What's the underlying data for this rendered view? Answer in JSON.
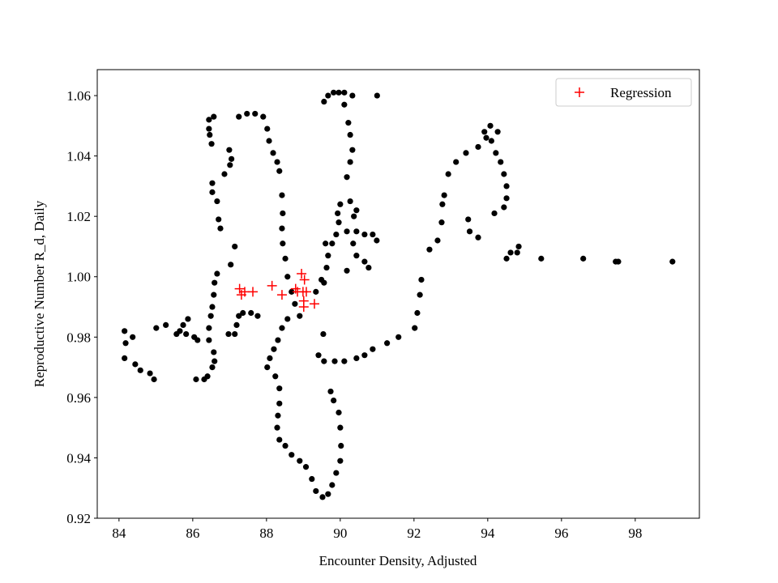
{
  "chart_data": {
    "type": "scatter",
    "xlabel": "Encounter Density, Adjusted",
    "ylabel": "Reproductive Number R_d, Daily",
    "xlim": [
      83.41,
      99.74
    ],
    "ylim": [
      0.92,
      1.0686
    ],
    "xticks": [
      84,
      86,
      88,
      90,
      92,
      94,
      96,
      98
    ],
    "yticks": [
      0.92,
      0.94,
      0.96,
      0.98,
      {
        "value": 1,
        "label": "1.00"
      },
      1.02,
      1.04,
      1.06
    ],
    "legend": "upper right",
    "series": [
      {
        "color": "#000000",
        "marker": "dot",
        "x": [
          84.15,
          84.18,
          84.15,
          84.37,
          84.44,
          84.58,
          84.84,
          84.95,
          85.01,
          85.27,
          85.56,
          85.65,
          85.74,
          85.87,
          85.82,
          86.04,
          86.13,
          86.09,
          86.31,
          86.4,
          86.53,
          86.59,
          86.57,
          86.44,
          86.44,
          86.49,
          86.53,
          86.57,
          86.59,
          86.66,
          87.03,
          87.14,
          86.75,
          86.7,
          86.66,
          86.53,
          86.53,
          86.86,
          87.01,
          87.05,
          86.99,
          86.44,
          86.57,
          86.44,
          86.46,
          86.51,
          86.97,
          87.14,
          87.19,
          87.25,
          87.36,
          87.58,
          87.76,
          87.25,
          87.47,
          87.69,
          87.91,
          88.02,
          88.07,
          88.18,
          88.29,
          88.35,
          88.42,
          88.44,
          88.42,
          88.44,
          88.51,
          88.57,
          88.68,
          88.77,
          88.9,
          88.57,
          88.42,
          88.31,
          88.2,
          88.09,
          88.02,
          88.24,
          88.35,
          88.35,
          88.31,
          88.29,
          88.35,
          88.51,
          88.68,
          88.9,
          89.07,
          89.23,
          89.34,
          89.52,
          89.67,
          89.78,
          89.89,
          90.0,
          90.02,
          90.0,
          89.96,
          89.82,
          89.74,
          89.41,
          89.56,
          89.85,
          90.11,
          90.44,
          90.66,
          90.88,
          91.27,
          91.58,
          92.02,
          92.09,
          92.16,
          92.2,
          92.42,
          92.64,
          92.75,
          92.77,
          92.82,
          92.93,
          93.14,
          93.41,
          93.74,
          93.96,
          93.91,
          94.07,
          94.27,
          94.1,
          94.22,
          94.35,
          94.44,
          94.51,
          94.51,
          94.44,
          94.18,
          93.74,
          93.51,
          93.47,
          94.51,
          94.62,
          94.84,
          94.8,
          95.45,
          96.59,
          97.47,
          97.54,
          99.01,
          89.34,
          89.49,
          89.63,
          89.67,
          89.78,
          89.89,
          89.96,
          89.93,
          90.0,
          90.18,
          90.27,
          90.33,
          90.27,
          90.22,
          90.11,
          89.96,
          89.82,
          89.67,
          89.56,
          90.11,
          90.33,
          91.0,
          90.18,
          90.44,
          90.66,
          90.88,
          90.99,
          90.37,
          90.35,
          90.44,
          90.66,
          90.77,
          90.18,
          90.27,
          90.44,
          89.6,
          89.56,
          89.54
        ],
        "y": [
          0.982,
          0.978,
          0.973,
          0.98,
          0.971,
          0.969,
          0.968,
          0.966,
          0.983,
          0.984,
          0.981,
          0.982,
          0.984,
          0.986,
          0.981,
          0.98,
          0.979,
          0.966,
          0.966,
          0.967,
          0.97,
          0.972,
          0.975,
          0.979,
          0.983,
          0.987,
          0.99,
          0.994,
          0.998,
          1.001,
          1.004,
          1.01,
          1.016,
          1.019,
          1.025,
          1.028,
          1.031,
          1.034,
          1.037,
          1.039,
          1.042,
          1.052,
          1.053,
          1.049,
          1.047,
          1.044,
          0.981,
          0.981,
          0.984,
          0.987,
          0.988,
          0.988,
          0.987,
          1.053,
          1.054,
          1.054,
          1.053,
          1.049,
          1.045,
          1.041,
          1.038,
          1.035,
          1.027,
          1.021,
          1.016,
          1.011,
          1.006,
          1.0,
          0.995,
          0.991,
          0.987,
          0.986,
          0.983,
          0.979,
          0.976,
          0.973,
          0.97,
          0.967,
          0.963,
          0.958,
          0.954,
          0.95,
          0.946,
          0.944,
          0.941,
          0.939,
          0.937,
          0.933,
          0.929,
          0.927,
          0.928,
          0.931,
          0.935,
          0.939,
          0.944,
          0.95,
          0.955,
          0.959,
          0.962,
          0.974,
          0.972,
          0.972,
          0.972,
          0.973,
          0.974,
          0.976,
          0.978,
          0.98,
          0.983,
          0.988,
          0.994,
          0.999,
          1.009,
          1.012,
          1.018,
          1.024,
          1.027,
          1.034,
          1.038,
          1.041,
          1.043,
          1.046,
          1.048,
          1.05,
          1.048,
          1.045,
          1.041,
          1.038,
          1.034,
          1.03,
          1.026,
          1.023,
          1.021,
          1.013,
          1.015,
          1.019,
          1.006,
          1.008,
          1.01,
          1.008,
          1.006,
          1.006,
          1.005,
          1.005,
          1.005,
          0.995,
          0.999,
          1.003,
          1.007,
          1.011,
          1.014,
          1.018,
          1.021,
          1.024,
          1.033,
          1.038,
          1.042,
          1.047,
          1.051,
          1.057,
          1.061,
          1.061,
          1.06,
          1.058,
          1.061,
          1.06,
          1.06,
          1.015,
          1.015,
          1.014,
          1.014,
          1.012,
          1.02,
          1.011,
          1.007,
          1.005,
          1.003,
          1.002,
          1.025,
          1.022,
          1.011,
          0.998,
          0.981
        ]
      },
      {
        "name": "Regression",
        "color": "#ff0000",
        "marker": "plus",
        "x": [
          87.27,
          87.32,
          87.41,
          87.63,
          88.15,
          88.42,
          88.79,
          88.95,
          89.03,
          88.99,
          89.08,
          89.01,
          89.01,
          89.3,
          88.84
        ],
        "y": [
          0.996,
          0.994,
          0.995,
          0.995,
          0.997,
          0.994,
          0.996,
          1.001,
          0.999,
          0.995,
          0.995,
          0.992,
          0.99,
          0.991,
          0.995
        ]
      }
    ]
  }
}
